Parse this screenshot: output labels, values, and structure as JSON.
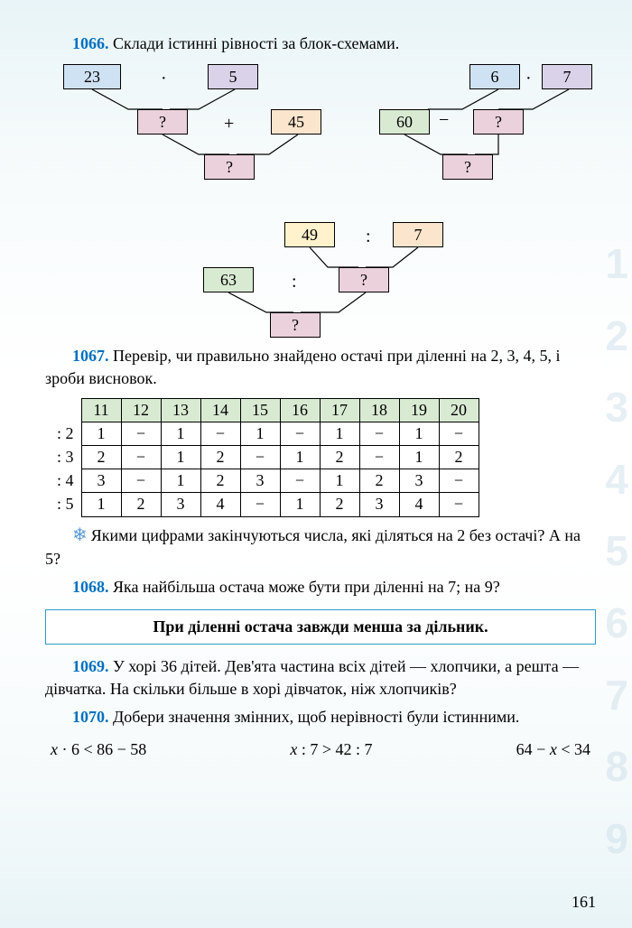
{
  "page_number": "161",
  "ex1066": {
    "num": "1066.",
    "text": "Склади істинні рівності за блок-схемами.",
    "left_diagram": {
      "a": "23",
      "b": "5",
      "op1": "·",
      "c": "?",
      "d": "45",
      "op2": "+",
      "e": "?"
    },
    "right_diagram": {
      "a": "6",
      "b": "7",
      "op1": "·",
      "c": "60",
      "d": "?",
      "op2": "−",
      "e": "?"
    },
    "bottom_diagram": {
      "a": "49",
      "b": "7",
      "op1": ":",
      "c": "63",
      "d": "?",
      "op2": ":",
      "e": "?"
    }
  },
  "ex1067": {
    "num": "1067.",
    "text": "Перевір, чи правильно знайдено остачі при діленні на 2, 3, 4, 5, і зроби висновок.",
    "headers": [
      "11",
      "12",
      "13",
      "14",
      "15",
      "16",
      "17",
      "18",
      "19",
      "20"
    ],
    "rows": [
      {
        "label": ": 2",
        "cells": [
          "1",
          "−",
          "1",
          "−",
          "1",
          "−",
          "1",
          "−",
          "1",
          "−"
        ]
      },
      {
        "label": ": 3",
        "cells": [
          "2",
          "−",
          "1",
          "2",
          "−",
          "1",
          "2",
          "−",
          "1",
          "2"
        ]
      },
      {
        "label": ": 4",
        "cells": [
          "3",
          "−",
          "1",
          "2",
          "3",
          "−",
          "1",
          "2",
          "3",
          "−"
        ]
      },
      {
        "label": ": 5",
        "cells": [
          "1",
          "2",
          "3",
          "4",
          "−",
          "1",
          "2",
          "3",
          "4",
          "−"
        ]
      }
    ],
    "followup": "Якими цифрами закінчуються числа, які діляться на 2 без остачі? А на 5?"
  },
  "ex1068": {
    "num": "1068.",
    "text": "Яка найбільша остача може бути при діленні на 7; на 9?"
  },
  "rule": "При діленні остача завжди менша за дільник.",
  "ex1069": {
    "num": "1069.",
    "text": "У хорі 36 дітей. Дев'ята частина всіх дітей — хлопчики, а решта — дівчатка. На скільки більше в хорі дівчаток, ніж хлопчиків?"
  },
  "ex1070": {
    "num": "1070.",
    "text": "Добери значення змінних, щоб нерівності були істинними.",
    "ineqs": [
      "x · 6 < 86 − 58",
      "x : 7 > 42 : 7",
      "64 − x < 34"
    ]
  },
  "side_digits": [
    "1",
    "2",
    "3",
    "4",
    "5",
    "6",
    "7",
    "8",
    "9"
  ],
  "colors": {
    "exnum": "#0070c0",
    "rule_border": "#2e9cca",
    "table_header_bg": "#d9ead3",
    "box_blue": "#cfe2f3",
    "box_lav": "#d9d2e9",
    "box_pink": "#ead1dc",
    "box_orange": "#fce5cd",
    "box_green": "#d9ead3",
    "box_yellow": "#fff2cc"
  }
}
